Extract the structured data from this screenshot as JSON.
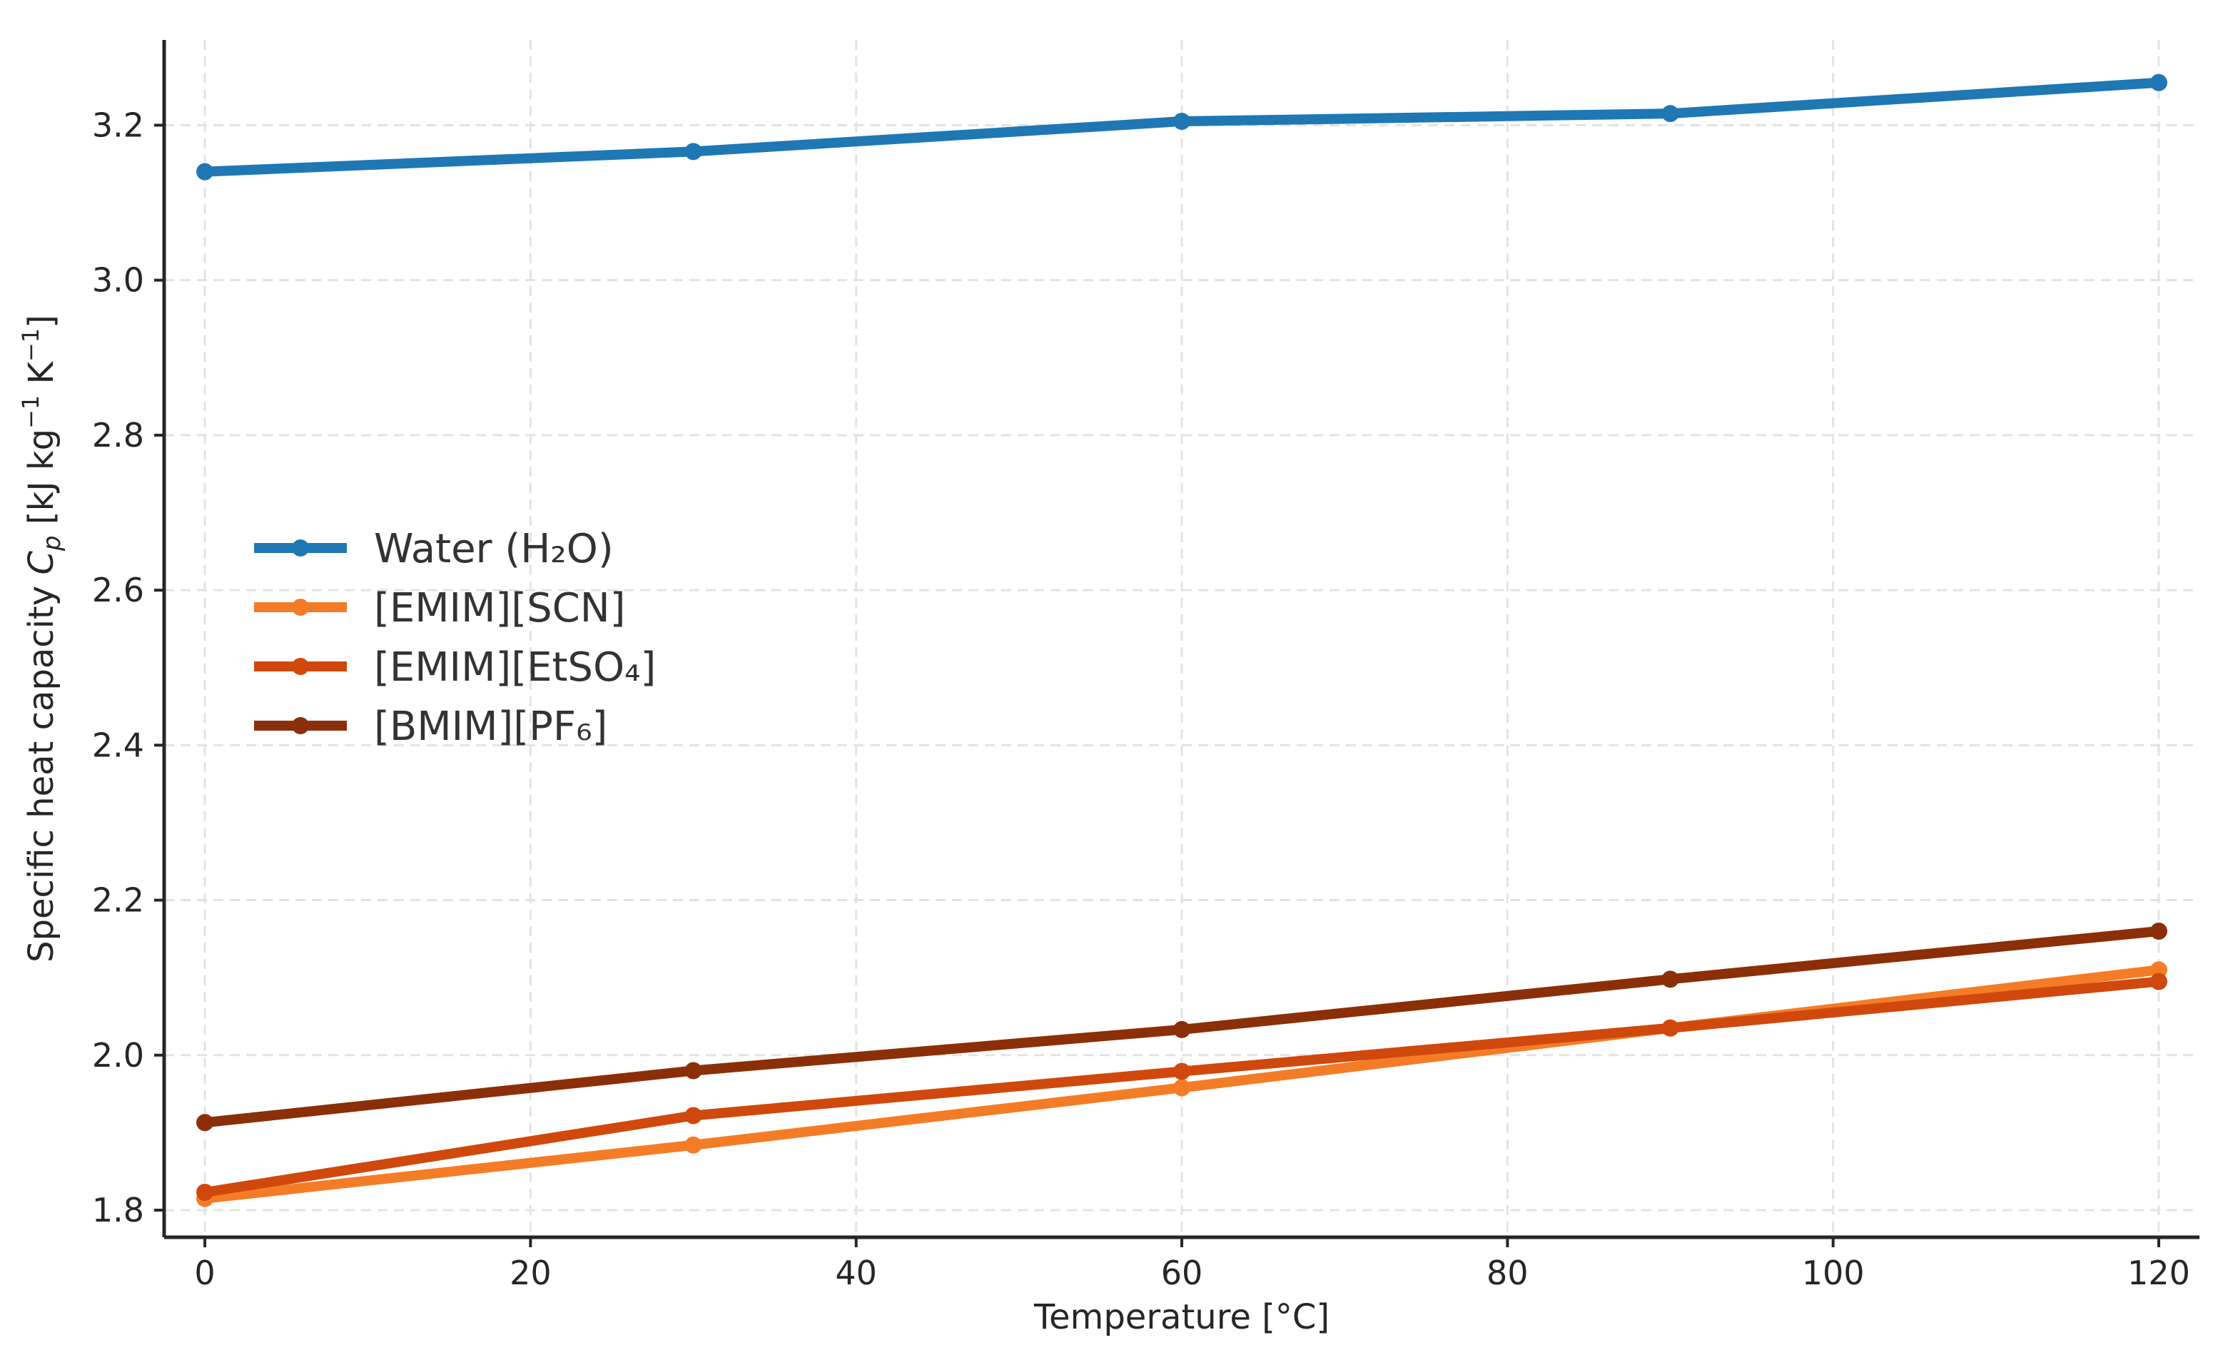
{
  "chart_data": {
    "type": "line",
    "title": "",
    "xlabel": "Temperature [°C]",
    "ylabel": {
      "prefix": "Specific heat capacity ",
      "symbol": "C",
      "subscript": "p",
      "unit_open": " [kJ kg",
      "exp1": "−1",
      "unit_mid": " K",
      "exp2": "−1",
      "unit_close": "]"
    },
    "xlim": [
      -2.5,
      122.5
    ],
    "ylim": [
      1.765,
      3.31
    ],
    "xticks": [
      0,
      20,
      40,
      60,
      80,
      100,
      120
    ],
    "yticks": [
      1.8,
      2.0,
      2.2,
      2.4,
      2.6,
      2.8,
      3.0,
      3.2
    ],
    "xtick_labels": [
      "0",
      "20",
      "40",
      "60",
      "80",
      "100",
      "120"
    ],
    "ytick_labels": [
      "1.8",
      "2.0",
      "2.2",
      "2.4",
      "2.6",
      "2.8",
      "3.0",
      "3.2"
    ],
    "grid": true,
    "legend_position": "center-left",
    "x": [
      0,
      30,
      60,
      90,
      120
    ],
    "series": [
      {
        "name": "Water (H₂O)",
        "color": "#1f77b4",
        "values": [
          3.14,
          3.166,
          3.205,
          3.215,
          3.255
        ]
      },
      {
        "name": "[EMIM][SCN]",
        "color": "#f57c27",
        "values": [
          1.815,
          1.884,
          1.958,
          2.035,
          2.11
        ]
      },
      {
        "name": "[EMIM][EtSO₄]",
        "color": "#d0480c",
        "values": [
          1.823,
          1.922,
          1.979,
          2.035,
          2.095
        ]
      },
      {
        "name": "[BMIM][PF₆]",
        "color": "#8a2f08",
        "values": [
          1.913,
          1.98,
          2.033,
          2.098,
          2.16
        ]
      }
    ]
  }
}
